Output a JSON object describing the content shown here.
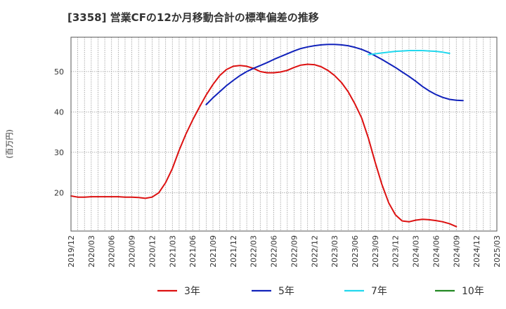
{
  "chart_data": {
    "type": "line",
    "title": "[3358]  営業CFの12か月移動合計の標準偏差の推移",
    "ylabel": "(百万円)",
    "xlabel": "",
    "ylim": [
      10.5,
      58.5
    ],
    "yticks": [
      20,
      30,
      40,
      50
    ],
    "xticks": [
      "2019/12",
      "2020/03",
      "2020/06",
      "2020/09",
      "2020/12",
      "2021/03",
      "2021/06",
      "2021/09",
      "2021/12",
      "2022/03",
      "2022/06",
      "2022/09",
      "2022/12",
      "2023/03",
      "2023/06",
      "2023/09",
      "2023/12",
      "2024/03",
      "2024/06",
      "2024/09",
      "2024/12",
      "2025/03"
    ],
    "grid": true,
    "legend_position": "bottom",
    "series": [
      {
        "name": "3年",
        "color": "#dd1111",
        "start": "2019/12",
        "values": [
          19.2,
          18.9,
          18.9,
          19.0,
          19.0,
          19.0,
          19.0,
          19.0,
          18.9,
          18.9,
          18.8,
          18.6,
          18.9,
          20.0,
          22.5,
          26.0,
          30.5,
          34.5,
          38.0,
          41.2,
          44.2,
          46.8,
          49.0,
          50.5,
          51.3,
          51.5,
          51.3,
          50.8,
          50.0,
          49.7,
          49.7,
          49.9,
          50.3,
          51.0,
          51.6,
          51.8,
          51.7,
          51.2,
          50.3,
          49.0,
          47.3,
          45.0,
          42.0,
          38.5,
          33.5,
          27.5,
          22.0,
          17.5,
          14.5,
          13.0,
          12.8,
          13.2,
          13.4,
          13.3,
          13.1,
          12.8,
          12.3,
          11.6
        ]
      },
      {
        "name": "5年",
        "color": "#1122bb",
        "start": "2021/08",
        "values": [
          41.8,
          43.5,
          45.0,
          46.5,
          47.8,
          49.0,
          50.0,
          50.8,
          51.5,
          52.2,
          53.0,
          53.7,
          54.4,
          55.1,
          55.7,
          56.1,
          56.4,
          56.6,
          56.7,
          56.7,
          56.6,
          56.4,
          56.0,
          55.5,
          54.8,
          53.9,
          53.0,
          52.0,
          51.0,
          49.9,
          48.8,
          47.6,
          46.3,
          45.2,
          44.3,
          43.6,
          43.1,
          42.9,
          42.8
        ]
      },
      {
        "name": "7年",
        "color": "#22d8ee",
        "start": "2023/08",
        "values": [
          54.2,
          54.4,
          54.6,
          54.8,
          55.0,
          55.1,
          55.2,
          55.2,
          55.2,
          55.1,
          55.0,
          54.8,
          54.5
        ]
      },
      {
        "name": "10年",
        "color": "#228822",
        "start": "2024/09",
        "values": []
      }
    ]
  }
}
